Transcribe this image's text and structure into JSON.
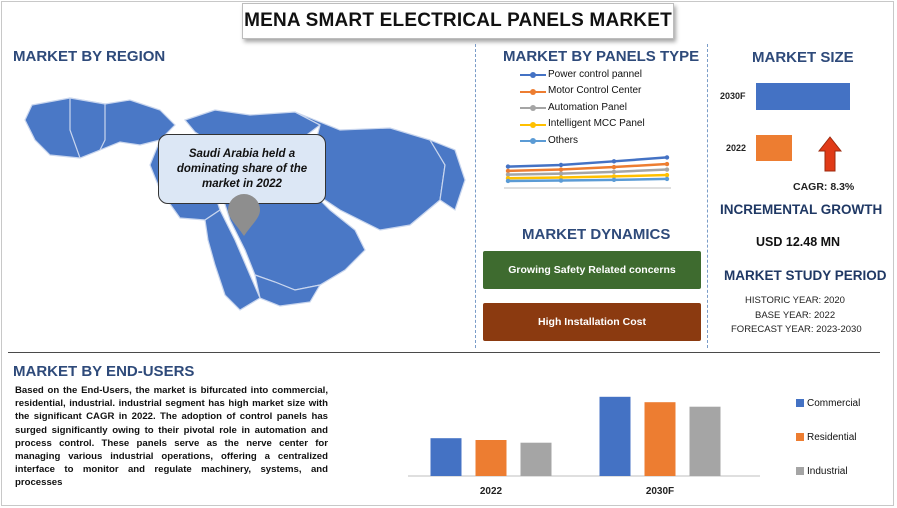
{
  "title": "MENA SMART ELECTRICAL PANELS MARKET",
  "region": {
    "heading": "MARKET BY REGION",
    "callout": "Saudi Arabia held a dominating share of the market in 2022"
  },
  "panels_type": {
    "heading": "MARKET BY PANELS TYPE",
    "legend": [
      {
        "label": "Power control pannel",
        "color": "#4472c4"
      },
      {
        "label": "Motor Control Center",
        "color": "#ed7d31"
      },
      {
        "label": "Automation Panel",
        "color": "#a5a5a5"
      },
      {
        "label": "Intelligent MCC Panel",
        "color": "#ffc000"
      },
      {
        "label": "Others",
        "color": "#5b9bd5"
      }
    ]
  },
  "dynamics": {
    "heading": "MARKET DYNAMICS",
    "driver": "Growing Safety Related concerns",
    "restraint": "High Installation Cost",
    "driver_color": "#3e6b2f",
    "restraint_color": "#8b3a10"
  },
  "market_size": {
    "heading": "MARKET SIZE",
    "bar_2030_label": "2030F",
    "bar_2022_label": "2022",
    "cagr": "CAGR:  8.3%",
    "incremental_heading": "INCREMENTAL GROWTH",
    "incremental_value": "USD 12.48 MN",
    "study_heading": "MARKET STUDY PERIOD",
    "historic": "HISTORIC YEAR: 2020",
    "base": "BASE YEAR: 2022",
    "forecast": "FORECAST YEAR: 2023-2030",
    "arrow_color": "#e03a17"
  },
  "end_users": {
    "heading": "MARKET BY END-USERS",
    "paragraph": "Based on the End-Users, the market is bifurcated into commercial, residential, industrial. industrial segment has high market size with the significant CAGR in 2022. The adoption of control panels has surged significantly owing to their pivotal role in automation and process control. These panels serve as the nerve center for managing various industrial operations, offering a centralized interface to monitor and regulate machinery, systems, and processes"
  },
  "chart_data": [
    {
      "type": "line",
      "x": [
        "",
        "",
        "",
        ""
      ],
      "series": [
        {
          "name": "Power control pannel",
          "values": [
            8.5,
            9.2,
            10.8,
            12.5
          ]
        },
        {
          "name": "Motor Control Center",
          "values": [
            6.6,
            7.2,
            8.3,
            9.6
          ]
        },
        {
          "name": "Automation Panel",
          "values": [
            5.0,
            5.4,
            6.2,
            7.2
          ]
        },
        {
          "name": "Intelligent MCC Panel",
          "values": [
            3.4,
            3.7,
            4.2,
            4.8
          ]
        },
        {
          "name": "Others",
          "values": [
            2.2,
            2.4,
            2.7,
            3.1
          ]
        }
      ],
      "ylim": [
        0,
        14
      ]
    },
    {
      "type": "bar",
      "categories": [
        "2030F",
        "2022"
      ],
      "values": [
        100,
        38
      ],
      "colors": [
        "#4472c4",
        "#ed7d31"
      ]
    },
    {
      "type": "bar",
      "categories": [
        "2022",
        "2030F"
      ],
      "series": [
        {
          "name": "Commercial",
          "values": [
            42,
            88
          ],
          "color": "#4472c4"
        },
        {
          "name": "Residential",
          "values": [
            40,
            82
          ],
          "color": "#ed7d31"
        },
        {
          "name": "Industrial",
          "values": [
            37,
            77
          ],
          "color": "#a5a5a5"
        }
      ],
      "ylim": [
        0,
        100
      ]
    }
  ]
}
